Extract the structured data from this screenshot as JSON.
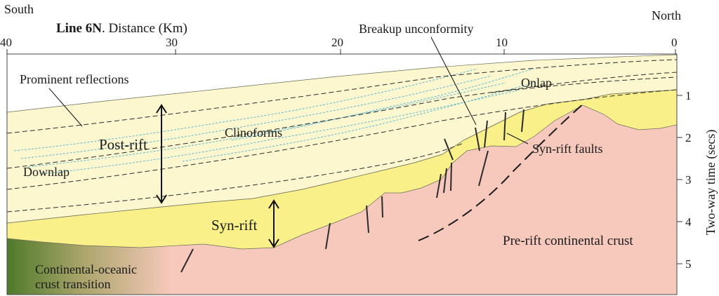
{
  "compass": {
    "left": "South",
    "right": "North"
  },
  "title": {
    "bold": "Line 6N",
    "rest": ". Distance (Km)"
  },
  "x_ticks": [
    "40",
    "30",
    "20",
    "10",
    "0"
  ],
  "y_ticks": [
    "1",
    "2",
    "3",
    "4",
    "5"
  ],
  "y_axis_label": "Two-way time (secs)",
  "labels": {
    "breakup": "Breakup unconformity",
    "prominent": "Prominent reflections",
    "onlap": "Onlap",
    "clinoforms": "Clinoforms",
    "postrift": "Post-rift",
    "downlap": "Downlap",
    "synrift_faults": "Syn-rift faults",
    "synrift": "Syn-rift",
    "prerift": "Pre-rift continental crust",
    "cot_line1": "Continental-oceanic",
    "cot_line2": "crust transition"
  },
  "colors": {
    "postrift": "#fdf7d0",
    "synrift": "#f9f08a",
    "prerift": "#f7c9bc",
    "oceanic": "#4f7a2a",
    "clinoform_lines": "#56b3cf",
    "reflector_lines": "#2b2b2b"
  }
}
